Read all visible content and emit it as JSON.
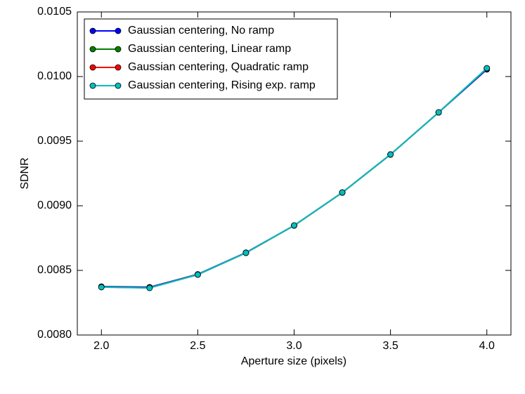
{
  "chart_data": {
    "type": "line",
    "x_label": "Aperture size  (pixels)",
    "y_label": "SDNR",
    "x": [
      2.0,
      2.25,
      2.5,
      2.75,
      3.0,
      3.25,
      3.5,
      3.75,
      4.0
    ],
    "series": [
      {
        "name": "Gaussian centering, No ramp",
        "color": "#0000ff",
        "values": [
          0.008375,
          0.00837,
          0.00847,
          0.008638,
          0.008848,
          0.009102,
          0.009397,
          0.009722,
          0.010055
        ]
      },
      {
        "name": "Gaussian centering, Linear ramp",
        "color": "#008000",
        "values": [
          0.008372,
          0.008366,
          0.008468,
          0.008636,
          0.008847,
          0.009102,
          0.009397,
          0.009723,
          0.010062
        ]
      },
      {
        "name": "Gaussian centering, Quadratic ramp",
        "color": "#ff0000",
        "values": [
          0.008371,
          0.008365,
          0.008467,
          0.008636,
          0.008847,
          0.009103,
          0.009397,
          0.009723,
          0.010064
        ]
      },
      {
        "name": "Gaussian centering, Rising exp. ramp",
        "color": "#00bfbf",
        "values": [
          0.00837,
          0.008364,
          0.008467,
          0.008636,
          0.008848,
          0.009103,
          0.009397,
          0.009723,
          0.010065
        ]
      }
    ],
    "xlim": [
      1.875,
      4.125
    ],
    "ylim": [
      0.008,
      0.0105
    ],
    "xticks": [
      {
        "value": 2,
        "label": "2.0"
      },
      {
        "value": 2.5,
        "label": "2.5"
      },
      {
        "value": 3,
        "label": "3.0"
      },
      {
        "value": 3.5,
        "label": "3.5"
      },
      {
        "value": 4,
        "label": "4.0"
      }
    ],
    "yticks": [
      {
        "value": 0.008,
        "label": "0.0080"
      },
      {
        "value": 0.0085,
        "label": "0.0085"
      },
      {
        "value": 0.009,
        "label": "0.0090"
      },
      {
        "value": 0.0095,
        "label": "0.0095"
      },
      {
        "value": 0.01,
        "label": "0.0100"
      },
      {
        "value": 0.0105,
        "label": "0.0105"
      }
    ],
    "legend": "upper left",
    "grid": false
  }
}
